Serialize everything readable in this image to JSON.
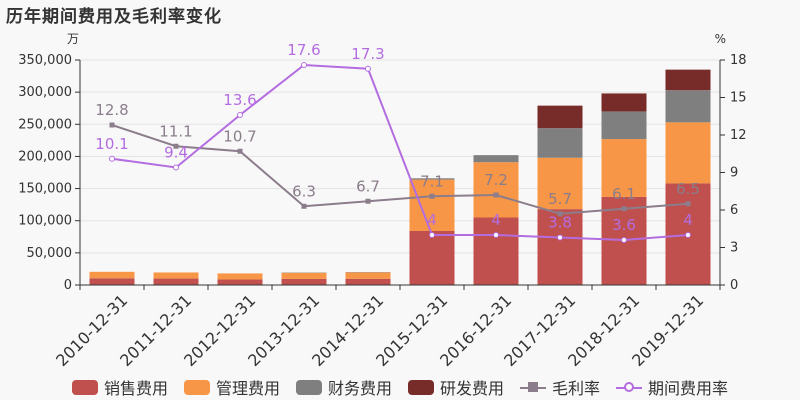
{
  "title": "历年期间费用及毛利率变化",
  "chart_data": {
    "type": "bar",
    "categories": [
      "2010-12-31",
      "2011-12-31",
      "2012-12-31",
      "2013-12-31",
      "2014-12-31",
      "2015-12-31",
      "2016-12-31",
      "2017-12-31",
      "2018-12-31",
      "2019-12-31"
    ],
    "left_unit": "万",
    "right_unit": "%",
    "ylim_left": [
      0,
      350000
    ],
    "yticks_left": [
      "0",
      "50,000",
      "100,000",
      "150,000",
      "200,000",
      "250,000",
      "300,000",
      "350,000"
    ],
    "ylim_right": [
      0,
      18
    ],
    "yticks_right": [
      "0",
      "3",
      "6",
      "9",
      "12",
      "15",
      "18"
    ],
    "stack_series": [
      {
        "name": "销售费用",
        "color": "#c0504d",
        "values": [
          10500,
          10000,
          8500,
          9500,
          9500,
          84000,
          105000,
          118000,
          137000,
          158000
        ]
      },
      {
        "name": "管理费用",
        "color": "#f79646",
        "values": [
          10000,
          9500,
          9500,
          9500,
          10000,
          80000,
          86000,
          80000,
          90000,
          95000
        ]
      },
      {
        "name": "财务费用",
        "color": "#7f7f7f",
        "values": [
          0,
          0,
          0,
          500,
          500,
          2000,
          11000,
          46000,
          43000,
          50000
        ]
      },
      {
        "name": "研发费用",
        "color": "#772c2a",
        "values": [
          0,
          0,
          0,
          0,
          0,
          0,
          0,
          35000,
          28000,
          32000
        ]
      }
    ],
    "line_series": [
      {
        "name": "毛利率",
        "color": "#8b7d8b",
        "marker": "square",
        "values": [
          12.8,
          11.1,
          10.7,
          6.3,
          6.7,
          7.1,
          7.2,
          5.7,
          6.1,
          6.5
        ],
        "labels": [
          "12.8",
          "11.1",
          "10.7",
          "6.3",
          "6.7",
          "7.1",
          "7.2",
          "5.7",
          "6.1",
          "6.5"
        ]
      },
      {
        "name": "期间费用率",
        "color": "#b36de0",
        "marker": "circle",
        "values": [
          10.1,
          9.4,
          13.6,
          17.6,
          17.3,
          4.0,
          4.0,
          3.8,
          3.6,
          4.0
        ],
        "labels": [
          "10.1",
          "9.4",
          "13.6",
          "17.6",
          "17.3",
          "4",
          "4",
          "3.8",
          "3.6",
          "4"
        ]
      }
    ],
    "grid": true,
    "legend": "bottom"
  }
}
